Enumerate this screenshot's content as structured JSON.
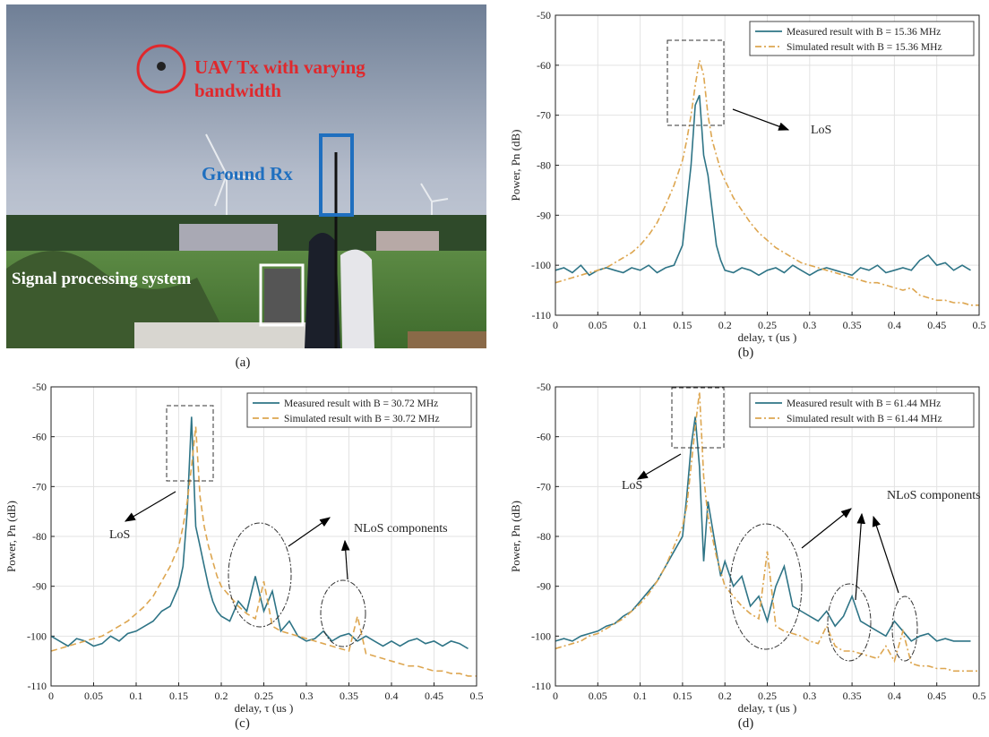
{
  "photo": {
    "labels": [
      "UAV Tx with varying",
      "bandwidth",
      "Ground Rx",
      "Signal processing system"
    ],
    "caption": "(a)"
  },
  "chart_data": [
    {
      "type": "line",
      "caption": "(b)",
      "xlabel": "delay, τ (us )",
      "ylabel": "Power, Pn (dB)",
      "annotations": [
        "LoS"
      ],
      "x": [
        0,
        0.01,
        0.02,
        0.03,
        0.04,
        0.05,
        0.06,
        0.07,
        0.08,
        0.09,
        0.1,
        0.11,
        0.12,
        0.13,
        0.14,
        0.15,
        0.155,
        0.16,
        0.165,
        0.17,
        0.175,
        0.18,
        0.185,
        0.19,
        0.195,
        0.2,
        0.21,
        0.22,
        0.23,
        0.24,
        0.25,
        0.26,
        0.27,
        0.28,
        0.29,
        0.3,
        0.31,
        0.32,
        0.33,
        0.34,
        0.35,
        0.36,
        0.37,
        0.38,
        0.39,
        0.4,
        0.41,
        0.42,
        0.43,
        0.44,
        0.45,
        0.46,
        0.47,
        0.48,
        0.49,
        0.5
      ],
      "series": [
        {
          "name": "Measured result with B = 15.36 MHz",
          "color": "#2e7486",
          "dash": "solid",
          "values": [
            -101,
            -100.5,
            -101.5,
            -100,
            -102,
            -101,
            -100.5,
            -101,
            -101.5,
            -100.5,
            -101,
            -100,
            -101.5,
            -100.5,
            -100,
            -96,
            -88,
            -80,
            -68,
            -66,
            -78,
            -82,
            -89,
            -96,
            -99,
            -101,
            -101.5,
            -100.5,
            -101,
            -102,
            -101,
            -100.5,
            -101.5,
            -100,
            -101,
            -102,
            -101,
            -100.5,
            -101,
            -101.5,
            -102,
            -100.5,
            -101,
            -100,
            -101.5,
            -101,
            -100.5,
            -101,
            -99,
            -98,
            -100,
            -99.5,
            -101,
            -100,
            -101,
            null
          ]
        },
        {
          "name": "Simulated result with B = 15.36 MHz",
          "color": "#dda650",
          "dash": "dashdot",
          "values": [
            -103.5,
            -103,
            -102.5,
            -102,
            -101.5,
            -101,
            -100.5,
            -99.5,
            -98.5,
            -97.5,
            -96,
            -94,
            -91.5,
            -88,
            -84,
            -79,
            -75,
            -70,
            -64,
            -59,
            -62,
            -70,
            -75,
            -78,
            -81,
            -83,
            -86.5,
            -89,
            -91.5,
            -93.5,
            -95,
            -96.5,
            -97.5,
            -98.5,
            -99.5,
            -100,
            -100.5,
            -101,
            -101.5,
            -102,
            -102.5,
            -103,
            -103.5,
            -103.5,
            -104,
            -104.5,
            -105,
            -104.5,
            -106,
            -106.5,
            -107,
            -107,
            -107.5,
            -107.5,
            -108,
            -108
          ]
        }
      ],
      "xlim": [
        0,
        0.5
      ],
      "ylim": [
        -110,
        -50
      ],
      "xticks": [
        0,
        0.05,
        0.1,
        0.15,
        0.2,
        0.25,
        0.3,
        0.35,
        0.4,
        0.45,
        0.5
      ],
      "yticks": [
        -110,
        -100,
        -90,
        -80,
        -70,
        -60,
        -50
      ],
      "grid": true,
      "legend": "upper right"
    },
    {
      "type": "line",
      "caption": "(c)",
      "xlabel": "delay, τ (us )",
      "ylabel": "Power, Pn (dB)",
      "annotations": [
        "LoS",
        "NLoS components"
      ],
      "x": [
        0,
        0.01,
        0.02,
        0.03,
        0.04,
        0.05,
        0.06,
        0.07,
        0.08,
        0.09,
        0.1,
        0.11,
        0.12,
        0.13,
        0.14,
        0.15,
        0.155,
        0.16,
        0.165,
        0.17,
        0.175,
        0.18,
        0.185,
        0.19,
        0.195,
        0.2,
        0.21,
        0.22,
        0.23,
        0.24,
        0.25,
        0.26,
        0.27,
        0.28,
        0.29,
        0.3,
        0.31,
        0.32,
        0.33,
        0.34,
        0.35,
        0.36,
        0.37,
        0.38,
        0.39,
        0.4,
        0.41,
        0.42,
        0.43,
        0.44,
        0.45,
        0.46,
        0.47,
        0.48,
        0.49,
        0.5
      ],
      "series": [
        {
          "name": "Measured result with B = 30.72 MHz",
          "color": "#2e7486",
          "dash": "solid",
          "values": [
            -100,
            -101,
            -102,
            -100.5,
            -101,
            -102,
            -101.5,
            -100,
            -101,
            -99.5,
            -99,
            -98,
            -97,
            -95,
            -94,
            -90,
            -86,
            -75,
            -56,
            -78,
            -82,
            -86,
            -90,
            -93,
            -95,
            -96,
            -97,
            -93,
            -95,
            -88,
            -95,
            -91,
            -99,
            -97,
            -100,
            -101,
            -100.5,
            -99,
            -101,
            -100,
            -99.5,
            -101,
            -100,
            -101,
            -102,
            -101,
            -102,
            -101,
            -100.5,
            -101.5,
            -101,
            -102,
            -101,
            -101.5,
            -102.5,
            null
          ]
        },
        {
          "name": "Simulated result with B = 30.72 MHz",
          "color": "#dda650",
          "dash": "dashed",
          "values": [
            -103,
            -102.5,
            -102,
            -101.5,
            -101,
            -100.5,
            -100,
            -99,
            -98,
            -97,
            -95.5,
            -94,
            -92,
            -89,
            -86,
            -82,
            -78,
            -73,
            -66,
            -58,
            -72,
            -78,
            -82,
            -85,
            -88,
            -90,
            -92,
            -94,
            -95.5,
            -96.5,
            -89,
            -98,
            -99,
            -99.5,
            -100,
            -100.5,
            -101,
            -101.5,
            -102,
            -102.5,
            -103,
            -96,
            -103.5,
            -104,
            -104.5,
            -105,
            -105.5,
            -106,
            -106,
            -106.5,
            -107,
            -107,
            -107.5,
            -107.5,
            -108,
            -108
          ]
        }
      ],
      "xlim": [
        0,
        0.5
      ],
      "ylim": [
        -110,
        -50
      ],
      "xticks": [
        0,
        0.05,
        0.1,
        0.15,
        0.2,
        0.25,
        0.3,
        0.35,
        0.4,
        0.45,
        0.5
      ],
      "yticks": [
        -110,
        -100,
        -90,
        -80,
        -70,
        -60,
        -50
      ],
      "grid": true,
      "legend": "upper right"
    },
    {
      "type": "line",
      "caption": "(d)",
      "xlabel": "delay, τ (us )",
      "ylabel": "Power, Pn (dB)",
      "annotations": [
        "LoS",
        "NLoS components"
      ],
      "x": [
        0,
        0.01,
        0.02,
        0.03,
        0.04,
        0.05,
        0.06,
        0.07,
        0.08,
        0.09,
        0.1,
        0.11,
        0.12,
        0.13,
        0.14,
        0.15,
        0.155,
        0.16,
        0.165,
        0.17,
        0.175,
        0.18,
        0.185,
        0.19,
        0.195,
        0.2,
        0.21,
        0.22,
        0.23,
        0.24,
        0.25,
        0.26,
        0.27,
        0.28,
        0.29,
        0.3,
        0.31,
        0.32,
        0.33,
        0.34,
        0.35,
        0.36,
        0.37,
        0.38,
        0.39,
        0.4,
        0.41,
        0.42,
        0.43,
        0.44,
        0.45,
        0.46,
        0.47,
        0.48,
        0.49,
        0.5
      ],
      "series": [
        {
          "name": "Measured result with B = 61.44 MHz",
          "color": "#2e7486",
          "dash": "solid",
          "values": [
            -101,
            -100.5,
            -101,
            -100,
            -99.5,
            -99,
            -98,
            -97.5,
            -96,
            -95,
            -93,
            -91,
            -89,
            -86,
            -83,
            -80,
            -72,
            -62,
            -56,
            -66,
            -85,
            -73,
            -78,
            -83,
            -88,
            -85,
            -90,
            -88,
            -94,
            -92,
            -97,
            -90,
            -86,
            -94,
            -95,
            -96,
            -97,
            -95,
            -98,
            -96,
            -92,
            -97,
            -98,
            -99,
            -100,
            -97,
            -99,
            -101,
            -100,
            -99.5,
            -101,
            -100.5,
            -101,
            -101,
            -101,
            null
          ]
        },
        {
          "name": "Simulated result with B = 61.44 MHz",
          "color": "#dda650",
          "dash": "dashdot",
          "values": [
            -102.5,
            -102,
            -101.5,
            -101,
            -100,
            -99.5,
            -98.5,
            -97.5,
            -96.5,
            -95,
            -93.5,
            -91.5,
            -89,
            -86,
            -82,
            -78,
            -74,
            -66,
            -58,
            -51,
            -68,
            -76,
            -80,
            -84,
            -87,
            -90,
            -92,
            -94,
            -95.5,
            -96.5,
            -83,
            -98,
            -99,
            -99.5,
            -100,
            -101,
            -101.5,
            -98,
            -102,
            -103,
            -103,
            -103.5,
            -104,
            -104.5,
            -102,
            -105,
            -99,
            -105.5,
            -106,
            -106,
            -106.5,
            -106.5,
            -107,
            -107,
            -107,
            -107
          ]
        }
      ],
      "xlim": [
        0,
        0.5
      ],
      "ylim": [
        -110,
        -50
      ],
      "xticks": [
        0,
        0.05,
        0.1,
        0.15,
        0.2,
        0.25,
        0.3,
        0.35,
        0.4,
        0.45,
        0.5
      ],
      "yticks": [
        -110,
        -100,
        -90,
        -80,
        -70,
        -60,
        -50
      ],
      "grid": true,
      "legend": "upper right"
    }
  ]
}
